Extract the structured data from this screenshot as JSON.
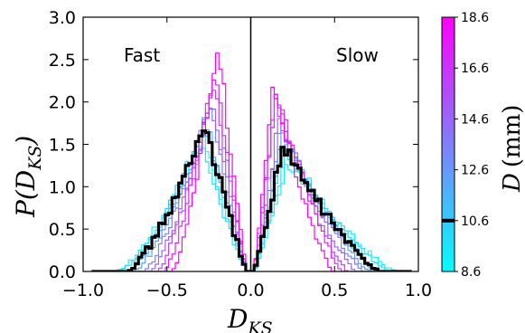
{
  "chart_data": {
    "type": "line",
    "x_axis": {
      "label_main": "D",
      "label_sub": "KS",
      "lim": [
        -1.0,
        1.0
      ],
      "ticks": [
        -1.0,
        -0.5,
        0.0,
        0.5,
        1.0
      ],
      "tick_labels": [
        "−1.0",
        "−0.5",
        "0.0",
        "0.5",
        "1.0"
      ]
    },
    "y_axis": {
      "label_pre": "P(",
      "label_main": "D",
      "label_sub": "KS",
      "label_post": ")",
      "lim": [
        0.0,
        3.0
      ],
      "ticks": [
        0.0,
        0.5,
        1.0,
        1.5,
        2.0,
        2.5,
        3.0
      ],
      "tick_labels": [
        "0.0",
        "0.5",
        "1.0",
        "1.5",
        "2.0",
        "2.5",
        "3.0"
      ]
    },
    "annotations": {
      "left": "Fast",
      "right": "Slow"
    },
    "zero_line_x": 0.0,
    "colorbar": {
      "label_main": "D",
      "label_unit": "(mm)",
      "range": [
        8.6,
        18.6
      ],
      "ticks": [
        8.6,
        10.6,
        12.6,
        14.6,
        16.6,
        18.6
      ],
      "tick_labels": [
        "8.6",
        "10.6",
        "12.6",
        "14.6",
        "16.6",
        "18.6"
      ],
      "highlight_value": 10.6,
      "color_low": "#00ffff",
      "color_high": "#ff00ff",
      "highlight_color": "#000000"
    },
    "series": [
      {
        "D": 8.6,
        "color": "#00ffff",
        "fast_peak_x": -0.28,
        "fast_peak_y": 1.58,
        "fast_width": 0.52,
        "slow_peak_x": 0.22,
        "slow_peak_y": 1.3,
        "slow_width": 0.65
      },
      {
        "D": 9.6,
        "color": "#20dfff",
        "fast_peak_x": -0.29,
        "fast_peak_y": 1.48,
        "fast_width": 0.5,
        "slow_peak_x": 0.21,
        "slow_peak_y": 1.38,
        "slow_width": 0.62
      },
      {
        "D": 11.6,
        "color": "#40bfff",
        "fast_peak_x": -0.27,
        "fast_peak_y": 1.82,
        "fast_width": 0.46,
        "slow_peak_x": 0.2,
        "slow_peak_y": 1.55,
        "slow_width": 0.56
      },
      {
        "D": 12.6,
        "color": "#609fff",
        "fast_peak_x": -0.26,
        "fast_peak_y": 1.7,
        "fast_width": 0.44,
        "slow_peak_x": 0.19,
        "slow_peak_y": 1.62,
        "slow_width": 0.53
      },
      {
        "D": 13.6,
        "color": "#7f7fff",
        "fast_peak_x": -0.24,
        "fast_peak_y": 1.98,
        "fast_width": 0.4,
        "slow_peak_x": 0.18,
        "slow_peak_y": 1.72,
        "slow_width": 0.5
      },
      {
        "D": 14.6,
        "color": "#9f60ff",
        "fast_peak_x": -0.23,
        "fast_peak_y": 2.05,
        "fast_width": 0.37,
        "slow_peak_x": 0.17,
        "slow_peak_y": 1.82,
        "slow_width": 0.46
      },
      {
        "D": 15.6,
        "color": "#bf40ff",
        "fast_peak_x": -0.22,
        "fast_peak_y": 2.25,
        "fast_width": 0.34,
        "slow_peak_x": 0.15,
        "slow_peak_y": 2.05,
        "slow_width": 0.43
      },
      {
        "D": 16.6,
        "color": "#df20ff",
        "fast_peak_x": -0.21,
        "fast_peak_y": 2.4,
        "fast_width": 0.31,
        "slow_peak_x": 0.15,
        "slow_peak_y": 2.15,
        "slow_width": 0.4
      },
      {
        "D": 18.6,
        "color": "#ff00ff",
        "fast_peak_x": -0.19,
        "fast_peak_y": 2.68,
        "fast_width": 0.28,
        "slow_peak_x": 0.13,
        "slow_peak_y": 2.25,
        "slow_width": 0.36
      },
      {
        "D": 10.6,
        "color": "#000000",
        "highlight": true,
        "fast_peak_x": -0.27,
        "fast_peak_y": 1.72,
        "fast_width": 0.47,
        "slow_peak_x": 0.19,
        "slow_peak_y": 1.48,
        "slow_width": 0.58
      }
    ]
  }
}
